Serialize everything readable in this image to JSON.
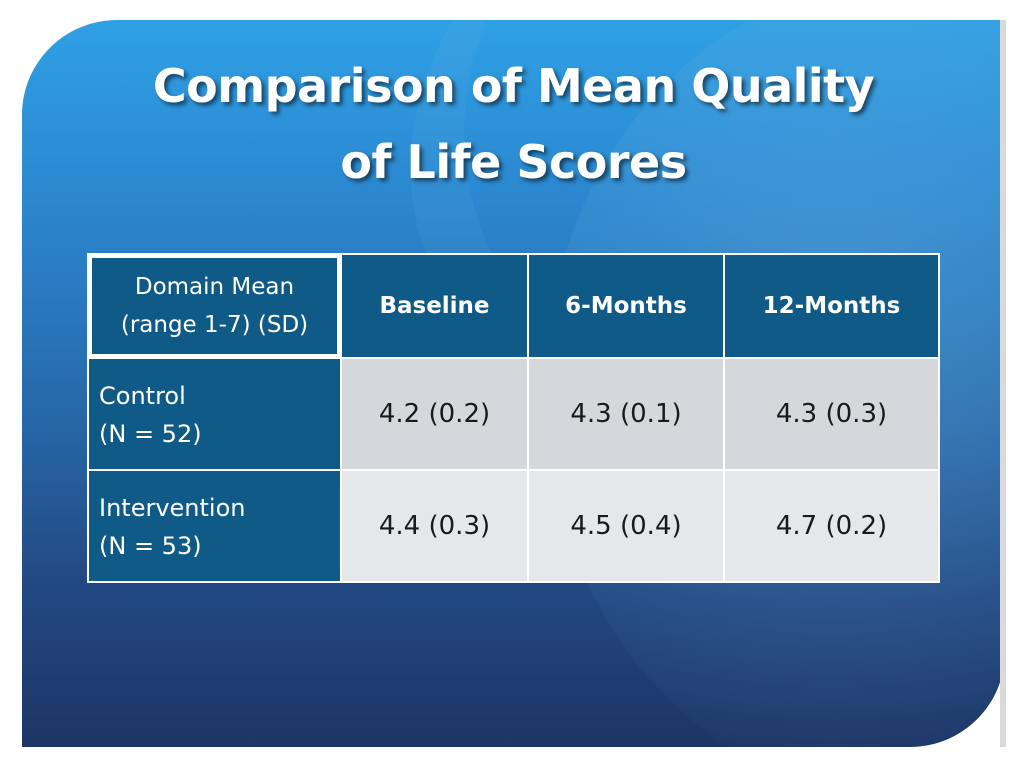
{
  "slide": {
    "title_line1": "Comparison of Mean Quality",
    "title_line2": "of Life Scores"
  },
  "table": {
    "corner_line1": "Domain Mean",
    "corner_line2": "(range 1-7) (SD)",
    "columns": [
      "Baseline",
      "6-Months",
      "12-Months"
    ],
    "rows": [
      {
        "label_line1": "Control",
        "label_line2": "(N = 52)",
        "values": [
          "4.2 (0.2)",
          "4.3 (0.1)",
          "4.3 (0.3)"
        ]
      },
      {
        "label_line1": "Intervention",
        "label_line2": "(N = 53)",
        "values": [
          "4.4 (0.3)",
          "4.5 (0.4)",
          "4.7 (0.2)"
        ]
      }
    ]
  },
  "colors": {
    "header_fill": "#0f5a86",
    "row1_fill": "#d5d7db",
    "row2_fill": "#e6e7e9",
    "background_top": "#2fa0e4",
    "background_bottom": "#1d3566"
  }
}
